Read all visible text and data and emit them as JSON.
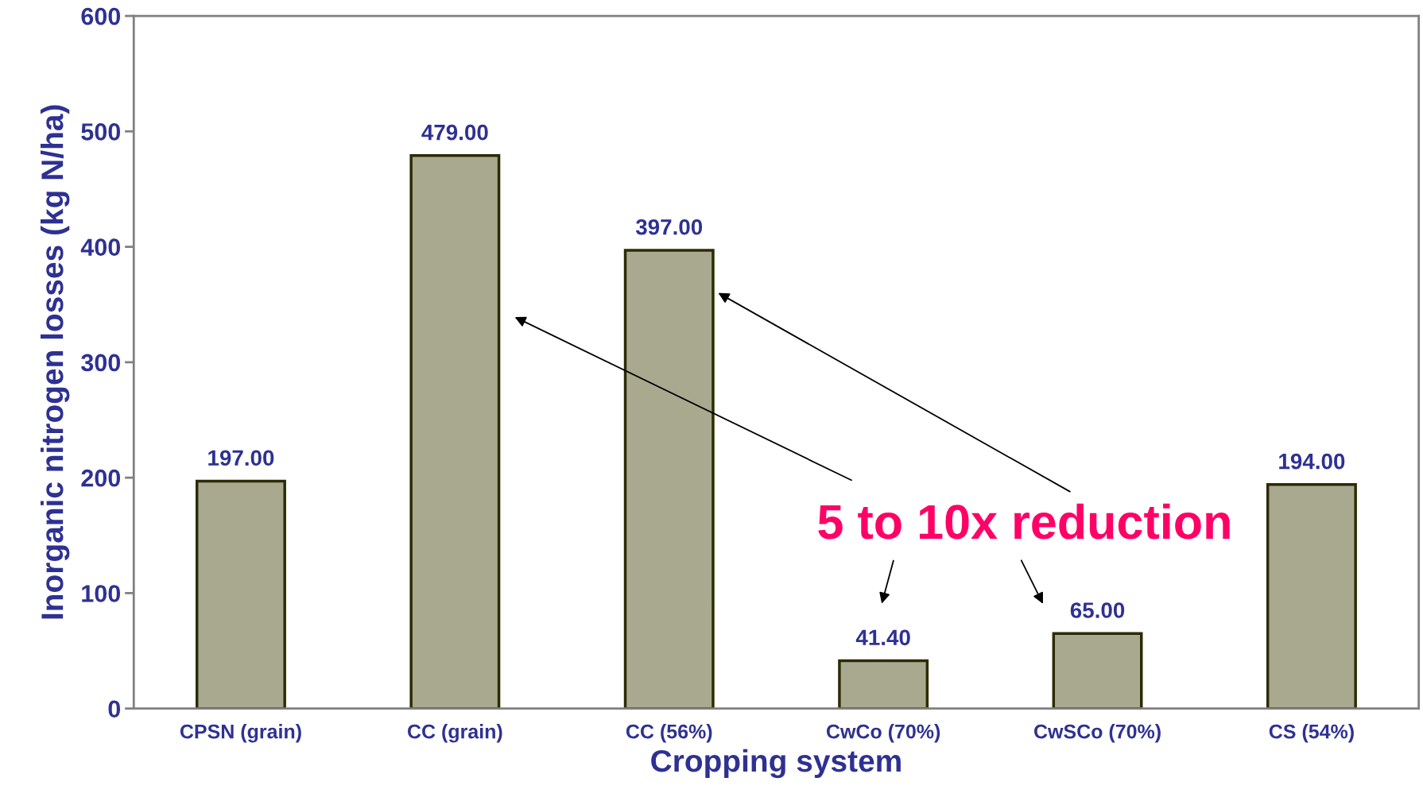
{
  "chart_data": {
    "type": "bar",
    "xlabel": "Cropping system",
    "ylabel": "Inorganic nitrogen losses (kg N/ha)",
    "categories": [
      "CPSN (grain)",
      "CC (grain)",
      "CC (56%)",
      "CwCo (70%)",
      "CwSCo (70%)",
      "CS (54%)"
    ],
    "values": [
      197.0,
      479.0,
      397.0,
      41.4,
      65.0,
      194.0
    ],
    "value_labels": [
      "197.00",
      "479.00",
      "397.00",
      "41.40",
      "65.00",
      "194.00"
    ],
    "color": "#a9a98f",
    "ylim": [
      0,
      600
    ],
    "yticks": [
      0,
      100,
      200,
      300,
      400,
      500,
      600
    ],
    "grid": false,
    "legend": false,
    "annotations": [
      "5 to 10x reduction"
    ]
  }
}
